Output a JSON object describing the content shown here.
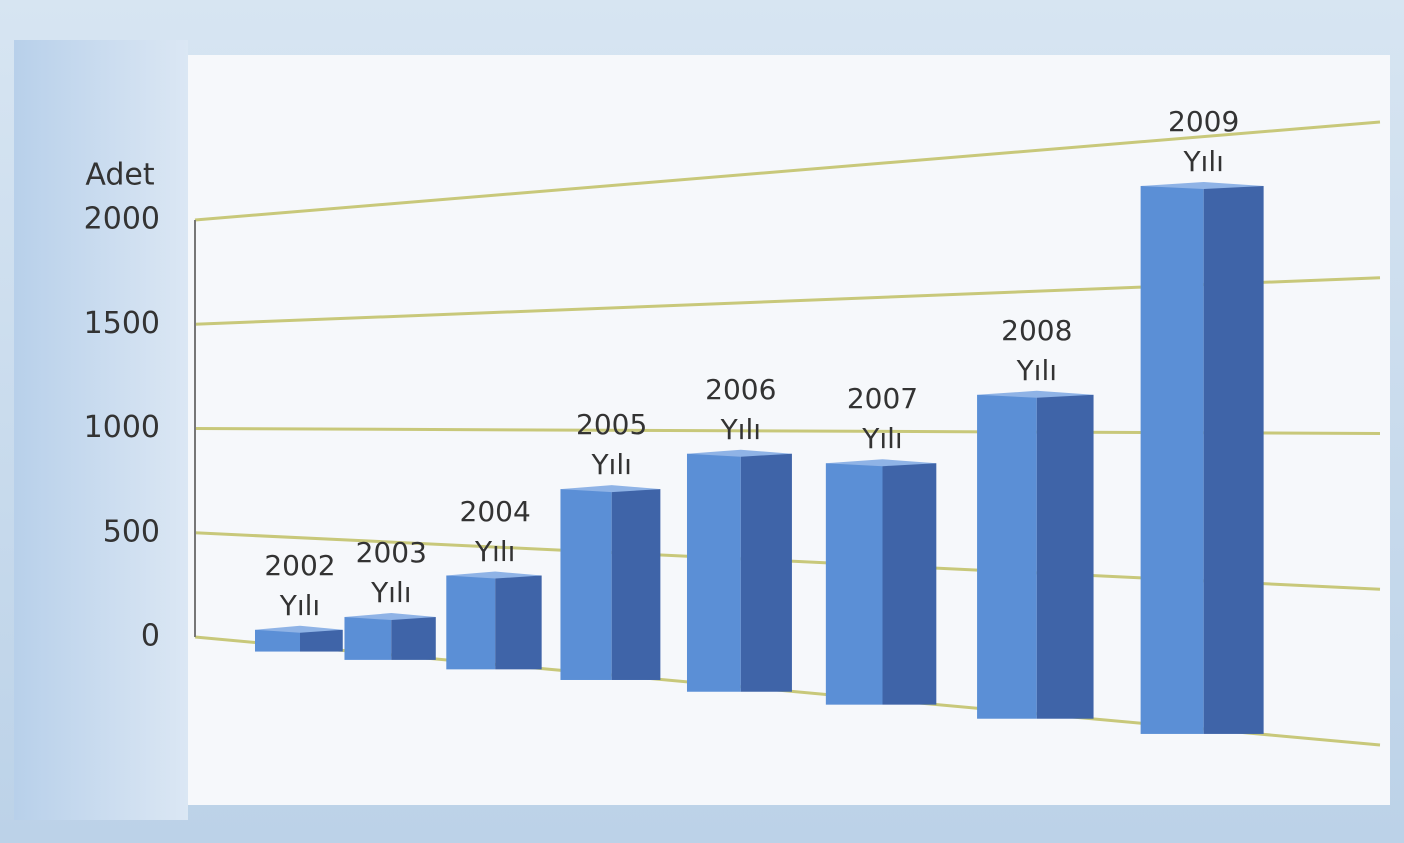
{
  "chart_data": {
    "type": "bar3d",
    "y_label": "Adet",
    "categories": [
      "2002 Yılı",
      "2003 Yılı",
      "2004 Yılı",
      "2005 Yılı",
      "2006 Yılı",
      "2007 Yılı",
      "2008 Yılı",
      "2009 Yılı"
    ],
    "values": [
      100,
      190,
      400,
      780,
      930,
      900,
      1150,
      1850
    ],
    "color": "#5b8fd6",
    "side_color": "#3f64a8",
    "grid_color": "#c8c87a",
    "ylim": [
      0,
      2000
    ],
    "yticks": [
      0,
      500,
      1000,
      1500,
      2000
    ],
    "grid": true
  }
}
